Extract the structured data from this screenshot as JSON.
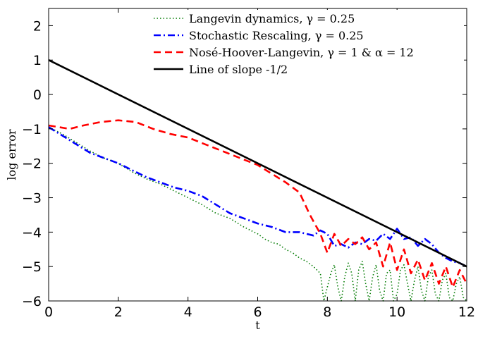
{
  "chart_data": {
    "type": "line",
    "title": "",
    "xlabel": "t",
    "ylabel": "log error",
    "xlim": [
      0,
      12
    ],
    "ylim": [
      -6,
      2.5
    ],
    "xticks": [
      0,
      2,
      4,
      6,
      8,
      10,
      12
    ],
    "yticks": [
      2,
      1,
      0,
      -1,
      -2,
      -3,
      -4,
      -5,
      -6
    ],
    "grid": false,
    "legend_position": "top-right",
    "series": [
      {
        "name": "Langevin dynamics, γ = 0.25",
        "color": "#007a00",
        "style": "dotted",
        "x": [
          0,
          0.4,
          0.8,
          1.2,
          1.6,
          2.0,
          2.4,
          2.8,
          3.2,
          3.6,
          4.0,
          4.4,
          4.8,
          5.2,
          5.6,
          6.0,
          6.2,
          6.4,
          6.6,
          6.8,
          7.0,
          7.2,
          7.4,
          7.6,
          7.8,
          7.9,
          8.0,
          8.1,
          8.2,
          8.3,
          8.4,
          8.5,
          8.6,
          8.7,
          8.8,
          8.9,
          9.0,
          9.1,
          9.2,
          9.3,
          9.4,
          9.5,
          9.6,
          9.7,
          9.8,
          9.9,
          10.0,
          10.1,
          10.2,
          10.3,
          10.4,
          10.5,
          10.6,
          10.7,
          10.8,
          10.9,
          11.0,
          11.1,
          11.2,
          11.3,
          11.4,
          11.5,
          11.6,
          11.7,
          11.8,
          11.9,
          12.0
        ],
        "y": [
          -0.95,
          -1.15,
          -1.4,
          -1.65,
          -1.85,
          -2.0,
          -2.25,
          -2.45,
          -2.6,
          -2.8,
          -3.0,
          -3.2,
          -3.45,
          -3.6,
          -3.85,
          -4.05,
          -4.2,
          -4.3,
          -4.35,
          -4.5,
          -4.6,
          -4.75,
          -4.85,
          -5.0,
          -5.2,
          -6.0,
          -5.6,
          -5.2,
          -4.95,
          -5.6,
          -6.0,
          -5.3,
          -4.9,
          -5.2,
          -6.0,
          -5.1,
          -4.85,
          -5.5,
          -6.0,
          -5.3,
          -4.95,
          -5.7,
          -6.0,
          -5.2,
          -5.1,
          -6.0,
          -5.8,
          -5.1,
          -4.95,
          -5.5,
          -6.0,
          -5.4,
          -5.0,
          -5.7,
          -6.0,
          -5.3,
          -5.1,
          -5.8,
          -6.0,
          -5.4,
          -5.2,
          -5.9,
          -6.0,
          -5.5,
          -5.3,
          -5.9,
          -6.0
        ]
      },
      {
        "name": "Stochastic Rescaling, γ = 0.25",
        "color": "#0000ff",
        "style": "dashdot",
        "x": [
          0,
          0.4,
          0.8,
          1.2,
          1.6,
          2.0,
          2.4,
          2.8,
          3.2,
          3.6,
          4.0,
          4.4,
          4.8,
          5.2,
          5.6,
          6.0,
          6.4,
          6.8,
          7.2,
          7.6,
          7.8,
          8.0,
          8.2,
          8.4,
          8.6,
          8.8,
          9.0,
          9.2,
          9.4,
          9.6,
          9.8,
          10.0,
          10.2,
          10.4,
          10.6,
          10.8,
          11.0,
          11.2,
          11.4,
          11.6,
          11.8,
          12.0
        ],
        "y": [
          -0.95,
          -1.2,
          -1.45,
          -1.7,
          -1.85,
          -2.0,
          -2.2,
          -2.4,
          -2.55,
          -2.7,
          -2.8,
          -2.95,
          -3.2,
          -3.45,
          -3.6,
          -3.75,
          -3.85,
          -4.0,
          -4.0,
          -4.1,
          -3.95,
          -4.05,
          -4.4,
          -4.35,
          -4.45,
          -4.3,
          -4.35,
          -4.2,
          -4.25,
          -4.05,
          -4.2,
          -3.9,
          -4.2,
          -4.15,
          -4.4,
          -4.2,
          -4.35,
          -4.6,
          -4.75,
          -4.85,
          -4.9,
          -5.0
        ]
      },
      {
        "name": "Nosé-Hoover-Langevin, γ = 1 & α = 12",
        "color": "#ff0000",
        "style": "dashed",
        "x": [
          0,
          0.3,
          0.6,
          1.0,
          1.5,
          2.0,
          2.5,
          3.0,
          3.5,
          4.0,
          4.5,
          5.0,
          5.5,
          6.0,
          6.4,
          6.8,
          7.2,
          7.5,
          7.8,
          8.0,
          8.2,
          8.4,
          8.6,
          8.8,
          9.0,
          9.2,
          9.4,
          9.6,
          9.8,
          10.0,
          10.2,
          10.4,
          10.6,
          10.8,
          11.0,
          11.2,
          11.4,
          11.6,
          11.8,
          12.0
        ],
        "y": [
          -0.9,
          -0.95,
          -1.0,
          -0.9,
          -0.8,
          -0.75,
          -0.8,
          -1.0,
          -1.15,
          -1.25,
          -1.45,
          -1.65,
          -1.85,
          -2.05,
          -2.3,
          -2.55,
          -2.85,
          -3.5,
          -4.05,
          -4.6,
          -4.05,
          -4.4,
          -4.2,
          -4.35,
          -4.15,
          -4.5,
          -4.3,
          -5.0,
          -4.3,
          -5.1,
          -4.5,
          -5.2,
          -4.8,
          -5.4,
          -4.9,
          -5.5,
          -5.0,
          -5.6,
          -5.1,
          -5.5
        ]
      },
      {
        "name": "Line of slope -1/2",
        "color": "#000000",
        "style": "solid",
        "x": [
          0,
          12
        ],
        "y": [
          1,
          -5
        ]
      }
    ]
  }
}
